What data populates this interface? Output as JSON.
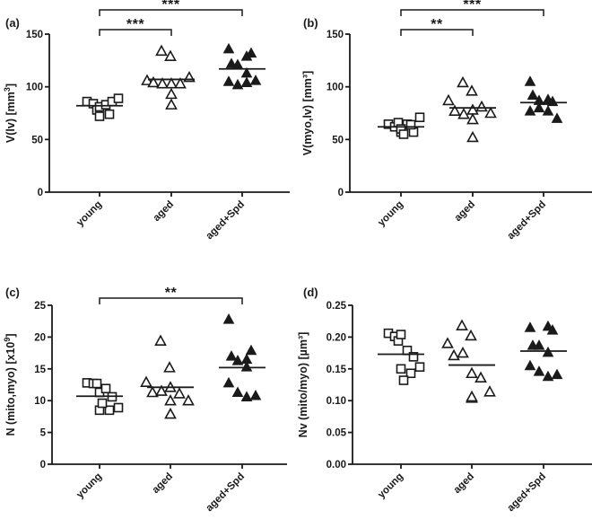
{
  "chart_data": [
    {
      "type": "scatter",
      "panel_label": "(a)",
      "ylabel": "V(lv) [mm",
      "ylabel_sup": "3",
      "ylabel_suffix": "]",
      "xlabel": "",
      "categories": [
        "young",
        "aged",
        "aged+Spd"
      ],
      "ylim": [
        0,
        150
      ],
      "yticks": [
        0,
        50,
        100,
        150
      ],
      "ytick_labels": [
        "0",
        "50",
        "100",
        "150"
      ],
      "grid": false,
      "series": [
        {
          "name": "young",
          "marker": "open-square",
          "values": [
            86,
            84,
            78,
            81,
            83,
            86,
            89,
            72,
            74
          ],
          "mean": 82
        },
        {
          "name": "aged",
          "marker": "open-triangle",
          "values": [
            134,
            129,
            106,
            104,
            103,
            103,
            103,
            109,
            93,
            83
          ],
          "mean": 107
        },
        {
          "name": "aged+Spd",
          "marker": "filled-triangle",
          "values": [
            136,
            132,
            129,
            122,
            121,
            113,
            105,
            102,
            104,
            106
          ],
          "mean": 117
        }
      ],
      "significance": [
        {
          "from": "young",
          "to": "aged+Spd",
          "label": "***",
          "level": 2
        },
        {
          "from": "young",
          "to": "aged",
          "label": "***",
          "level": 1
        }
      ]
    },
    {
      "type": "scatter",
      "panel_label": "(b)",
      "ylabel": "V(myo,lv) [mm³]",
      "ylabel_sup": "",
      "ylabel_suffix": "",
      "xlabel": "",
      "categories": [
        "young",
        "aged",
        "aged+Spd"
      ],
      "ylim": [
        0,
        150
      ],
      "yticks": [
        0,
        50,
        100,
        150
      ],
      "ytick_labels": [
        "0",
        "50",
        "100",
        "150"
      ],
      "grid": false,
      "series": [
        {
          "name": "young",
          "marker": "open-square",
          "values": [
            64.5,
            62,
            66,
            57,
            64.5,
            57,
            71,
            60,
            64,
            55
          ],
          "mean": 62
        },
        {
          "name": "aged",
          "marker": "open-triangle",
          "values": [
            104,
            96,
            87,
            77,
            74,
            78,
            81,
            75,
            69,
            52
          ],
          "mean": 80
        },
        {
          "name": "aged+Spd",
          "marker": "filled-triangle",
          "values": [
            105,
            86,
            87,
            92,
            87,
            88,
            77,
            80,
            77,
            70
          ],
          "mean": 85
        }
      ],
      "significance": [
        {
          "from": "young",
          "to": "aged+Spd",
          "label": "***",
          "level": 2
        },
        {
          "from": "young",
          "to": "aged",
          "label": "**",
          "level": 1
        }
      ]
    },
    {
      "type": "scatter",
      "panel_label": "(c)",
      "ylabel": "N (mito,myo)  [x10",
      "ylabel_sup": "9",
      "ylabel_suffix": "]",
      "xlabel": "",
      "categories": [
        "young",
        "aged",
        "aged+Spd"
      ],
      "ylim": [
        0,
        25
      ],
      "yticks": [
        0,
        5,
        10,
        15,
        20,
        25
      ],
      "ytick_labels": [
        "0",
        "5",
        "10",
        "15",
        "20",
        "25"
      ],
      "grid": false,
      "series": [
        {
          "name": "young",
          "marker": "open-square",
          "values": [
            12.8,
            12.7,
            12.7,
            11.3,
            11.9,
            10.6,
            8.9,
            8.5,
            8.5,
            9.6
          ],
          "mean": 10.7
        },
        {
          "name": "aged",
          "marker": "open-triangle",
          "values": [
            19.4,
            15.2,
            12.9,
            11.3,
            11.5,
            12.1,
            11.1,
            10.0,
            10.0,
            7.9
          ],
          "mean": 12.1
        },
        {
          "name": "aged+Spd",
          "marker": "filled-triangle",
          "values": [
            22.8,
            17.9,
            16.5,
            17.0,
            16.3,
            15.3,
            12.8,
            11.3,
            10.6,
            10.8
          ],
          "mean": 15.2
        }
      ],
      "significance": [
        {
          "from": "young",
          "to": "aged+Spd",
          "label": "**",
          "level": 1
        }
      ]
    },
    {
      "type": "scatter",
      "panel_label": "(d)",
      "ylabel": "Nv (mito/myo) [µm³]",
      "ylabel_sup": "",
      "ylabel_suffix": "",
      "xlabel": "",
      "categories": [
        "young",
        "aged",
        "aged+Spd"
      ],
      "ylim": [
        0,
        0.25
      ],
      "yticks": [
        0,
        0.05,
        0.1,
        0.15,
        0.2,
        0.25
      ],
      "ytick_labels": [
        "0.00",
        "0.05",
        "0.10",
        "0.15",
        "0.20",
        "0.25"
      ],
      "grid": false,
      "series": [
        {
          "name": "young",
          "marker": "open-square",
          "values": [
            0.206,
            0.201,
            0.194,
            0.204,
            0.179,
            0.169,
            0.153,
            0.15,
            0.143,
            0.132
          ],
          "mean": 0.173
        },
        {
          "name": "aged",
          "marker": "open-triangle",
          "values": [
            0.218,
            0.202,
            0.19,
            0.171,
            0.175,
            0.143,
            0.136,
            0.114,
            0.104,
            0.106
          ],
          "mean": 0.156
        },
        {
          "name": "aged+Spd",
          "marker": "filled-triangle",
          "values": [
            0.215,
            0.211,
            0.217,
            0.187,
            0.187,
            0.176,
            0.155,
            0.146,
            0.138,
            0.141
          ],
          "mean": 0.178
        }
      ],
      "significance": []
    }
  ]
}
